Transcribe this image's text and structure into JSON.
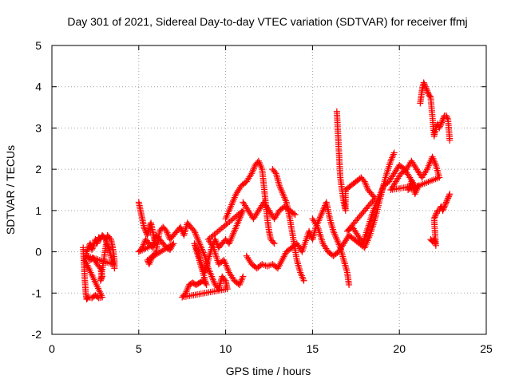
{
  "chart_data": {
    "type": "scatter",
    "title": "Day 301 of 2021, Sidereal Day-to-day VTEC variation (SDTVAR) for receiver ffmj",
    "xlabel": "GPS time / hours",
    "ylabel": "SDTVAR / TECUs",
    "xlim": [
      0,
      25
    ],
    "ylim": [
      -2,
      5
    ],
    "xticks": [
      "0",
      "5",
      "10",
      "15",
      "20",
      "25"
    ],
    "yticks": [
      "-2",
      "-1",
      "0",
      "1",
      "2",
      "3",
      "4",
      "5"
    ],
    "grid": true,
    "marker": "+",
    "color": "#ff0000",
    "series": [
      {
        "name": "SDTVAR",
        "points": [
          [
            1.8,
            0.1
          ],
          [
            1.85,
            -0.3
          ],
          [
            1.9,
            -0.7
          ],
          [
            1.95,
            -1.0
          ],
          [
            2.0,
            -1.15
          ],
          [
            2.1,
            -1.1
          ],
          [
            2.3,
            -1.12
          ],
          [
            2.5,
            -1.05
          ],
          [
            2.7,
            -1.12
          ],
          [
            2.9,
            -1.1
          ],
          [
            1.9,
            -0.2
          ],
          [
            2.0,
            0.0
          ],
          [
            2.1,
            0.1
          ],
          [
            2.2,
            0.2
          ],
          [
            2.3,
            0.05
          ],
          [
            2.4,
            0.15
          ],
          [
            2.5,
            0.3
          ],
          [
            2.6,
            0.2
          ],
          [
            2.7,
            0.35
          ],
          [
            2.8,
            0.3
          ],
          [
            2.9,
            0.4
          ],
          [
            3.0,
            0.35
          ],
          [
            3.1,
            0.3
          ],
          [
            3.2,
            0.15
          ],
          [
            3.3,
            0.05
          ],
          [
            3.4,
            -0.1
          ],
          [
            3.5,
            -0.3
          ],
          [
            2.0,
            -0.1
          ],
          [
            2.2,
            -0.2
          ],
          [
            2.4,
            -0.15
          ],
          [
            2.6,
            -0.3
          ],
          [
            2.8,
            -0.4
          ],
          [
            2.9,
            -0.6
          ],
          [
            2.8,
            -0.7
          ],
          [
            3.2,
            0.4
          ],
          [
            3.4,
            0.3
          ],
          [
            3.5,
            0.1
          ],
          [
            3.6,
            -0.2
          ],
          [
            3.6,
            -0.4
          ],
          [
            5.0,
            1.2
          ],
          [
            5.1,
            1.0
          ],
          [
            5.2,
            0.8
          ],
          [
            5.3,
            0.6
          ],
          [
            5.4,
            0.5
          ],
          [
            5.5,
            0.4
          ],
          [
            5.6,
            0.6
          ],
          [
            5.7,
            0.7
          ],
          [
            5.8,
            0.5
          ],
          [
            5.9,
            0.3
          ],
          [
            6.0,
            0.2
          ],
          [
            5.0,
            0.0
          ],
          [
            5.2,
            0.1
          ],
          [
            5.4,
            0.3
          ],
          [
            5.6,
            0.2
          ],
          [
            5.8,
            0.1
          ],
          [
            6.0,
            0.4
          ],
          [
            6.2,
            0.3
          ],
          [
            6.4,
            0.2
          ],
          [
            6.6,
            0.1
          ],
          [
            6.8,
            0.05
          ],
          [
            7.0,
            0.2
          ],
          [
            5.5,
            -0.2
          ],
          [
            5.6,
            -0.3
          ],
          [
            5.8,
            -0.1
          ],
          [
            6.0,
            0.0
          ],
          [
            6.2,
            0.5
          ],
          [
            6.4,
            0.6
          ],
          [
            6.6,
            0.5
          ],
          [
            6.8,
            0.3
          ],
          [
            7.0,
            0.4
          ],
          [
            7.2,
            0.5
          ],
          [
            7.4,
            0.6
          ],
          [
            7.6,
            0.4
          ],
          [
            7.8,
            0.7
          ],
          [
            8.0,
            0.6
          ],
          [
            8.2,
            0.5
          ],
          [
            8.4,
            0.3
          ],
          [
            8.6,
            0.1
          ],
          [
            8.8,
            -0.1
          ],
          [
            9.0,
            -0.4
          ],
          [
            9.2,
            -0.6
          ],
          [
            9.4,
            -0.8
          ],
          [
            9.6,
            -0.9
          ],
          [
            9.8,
            -0.6
          ],
          [
            10.0,
            -0.7
          ],
          [
            10.1,
            -0.9
          ],
          [
            7.5,
            -1.1
          ],
          [
            7.7,
            -1.0
          ],
          [
            7.9,
            -0.8
          ],
          [
            8.1,
            -0.75
          ],
          [
            8.3,
            -0.8
          ],
          [
            8.5,
            -0.75
          ],
          [
            8.7,
            -0.7
          ],
          [
            8.9,
            -0.8
          ],
          [
            8.2,
            0.2
          ],
          [
            8.4,
            0.0
          ],
          [
            8.6,
            -0.3
          ],
          [
            8.8,
            -0.5
          ],
          [
            9.0,
            -0.2
          ],
          [
            9.2,
            0.1
          ],
          [
            9.4,
            0.3
          ],
          [
            9.6,
            0.1
          ],
          [
            9.8,
            0.2
          ],
          [
            10.0,
            0.3
          ],
          [
            10.2,
            0.2
          ],
          [
            10.4,
            0.4
          ],
          [
            10.6,
            0.6
          ],
          [
            10.8,
            0.8
          ],
          [
            11.0,
            1.0
          ],
          [
            9.0,
            0.3
          ],
          [
            9.3,
            0.1
          ],
          [
            9.6,
            -0.3
          ],
          [
            9.9,
            -0.2
          ],
          [
            10.2,
            -0.5
          ],
          [
            10.5,
            -0.7
          ],
          [
            10.8,
            -0.8
          ],
          [
            11.0,
            -0.6
          ],
          [
            10.0,
            0.8
          ],
          [
            10.3,
            1.1
          ],
          [
            10.6,
            1.4
          ],
          [
            10.9,
            1.6
          ],
          [
            11.2,
            1.7
          ],
          [
            11.5,
            1.9
          ],
          [
            11.7,
            2.1
          ],
          [
            11.9,
            2.2
          ],
          [
            12.1,
            2.0
          ],
          [
            12.2,
            1.6
          ],
          [
            12.3,
            1.2
          ],
          [
            12.4,
            0.8
          ],
          [
            12.5,
            0.5
          ],
          [
            12.6,
            0.3
          ],
          [
            12.8,
            0.2
          ],
          [
            11.0,
            1.2
          ],
          [
            11.3,
            1.0
          ],
          [
            11.6,
            0.8
          ],
          [
            11.9,
            1.0
          ],
          [
            12.2,
            1.2
          ],
          [
            12.5,
            1.0
          ],
          [
            12.8,
            0.8
          ],
          [
            13.1,
            1.0
          ],
          [
            13.4,
            1.1
          ],
          [
            13.7,
            1.0
          ],
          [
            14.0,
            0.9
          ],
          [
            12.7,
            2.0
          ],
          [
            12.9,
            1.9
          ],
          [
            13.1,
            1.6
          ],
          [
            13.3,
            1.4
          ],
          [
            13.5,
            1.2
          ],
          [
            13.7,
            0.8
          ],
          [
            13.9,
            0.3
          ],
          [
            14.1,
            -0.2
          ],
          [
            14.3,
            -0.5
          ],
          [
            14.5,
            -0.7
          ],
          [
            11.2,
            -0.1
          ],
          [
            11.5,
            -0.3
          ],
          [
            11.8,
            -0.4
          ],
          [
            12.1,
            -0.3
          ],
          [
            12.4,
            -0.35
          ],
          [
            12.7,
            -0.3
          ],
          [
            13.0,
            -0.4
          ],
          [
            13.5,
            0.0
          ],
          [
            13.8,
            0.1
          ],
          [
            14.1,
            0.2
          ],
          [
            14.4,
            0.0
          ],
          [
            14.8,
            0.5
          ],
          [
            15.0,
            0.3
          ],
          [
            15.2,
            0.6
          ],
          [
            15.4,
            0.8
          ],
          [
            15.6,
            1.0
          ],
          [
            15.8,
            1.2
          ],
          [
            16.0,
            0.8
          ],
          [
            16.2,
            0.5
          ],
          [
            16.4,
            0.3
          ],
          [
            16.6,
            0.1
          ],
          [
            16.8,
            -0.2
          ],
          [
            17.0,
            -0.5
          ],
          [
            17.1,
            -0.8
          ],
          [
            15.0,
            0.8
          ],
          [
            15.3,
            0.6
          ],
          [
            15.6,
            0.2
          ],
          [
            15.9,
            0.0
          ],
          [
            16.2,
            -0.1
          ],
          [
            16.5,
            0.0
          ],
          [
            16.8,
            0.2
          ],
          [
            17.1,
            0.4
          ],
          [
            17.4,
            0.3
          ],
          [
            17.7,
            0.2
          ],
          [
            18.0,
            0.1
          ],
          [
            18.3,
            0.4
          ],
          [
            18.6,
            0.8
          ],
          [
            18.9,
            1.3
          ],
          [
            19.2,
            1.8
          ],
          [
            19.5,
            2.2
          ],
          [
            19.7,
            2.4
          ],
          [
            16.4,
            3.4
          ],
          [
            16.45,
            3.0
          ],
          [
            16.5,
            2.6
          ],
          [
            16.55,
            2.2
          ],
          [
            16.6,
            1.8
          ],
          [
            16.7,
            1.5
          ],
          [
            16.8,
            1.2
          ],
          [
            16.9,
            1.0
          ],
          [
            16.9,
            1.5
          ],
          [
            17.2,
            1.6
          ],
          [
            17.5,
            1.7
          ],
          [
            17.8,
            1.8
          ],
          [
            18.0,
            1.7
          ],
          [
            18.2,
            1.5
          ],
          [
            18.4,
            1.4
          ],
          [
            18.6,
            1.3
          ],
          [
            17.0,
            0.5
          ],
          [
            17.3,
            0.6
          ],
          [
            17.6,
            0.4
          ],
          [
            17.9,
            0.2
          ],
          [
            18.2,
            0.6
          ],
          [
            18.5,
            1.0
          ],
          [
            18.8,
            1.3
          ],
          [
            19.1,
            1.6
          ],
          [
            19.4,
            1.7
          ],
          [
            19.7,
            1.9
          ],
          [
            20.0,
            2.1
          ],
          [
            20.3,
            2.0
          ],
          [
            20.6,
            1.8
          ],
          [
            20.9,
            1.6
          ],
          [
            19.5,
            1.5
          ],
          [
            19.8,
            1.7
          ],
          [
            20.1,
            1.9
          ],
          [
            20.4,
            2.0
          ],
          [
            20.7,
            2.2
          ],
          [
            21.0,
            2.0
          ],
          [
            21.3,
            1.8
          ],
          [
            21.6,
            2.0
          ],
          [
            21.9,
            2.3
          ],
          [
            22.1,
            2.1
          ],
          [
            22.3,
            1.8
          ],
          [
            20.5,
            1.5
          ],
          [
            20.7,
            1.7
          ],
          [
            20.9,
            1.4
          ],
          [
            21.1,
            1.6
          ],
          [
            21.2,
            3.6
          ],
          [
            21.3,
            3.9
          ],
          [
            21.4,
            4.1
          ],
          [
            21.5,
            4.0
          ],
          [
            21.6,
            3.9
          ],
          [
            21.7,
            3.8
          ],
          [
            21.8,
            3.75
          ],
          [
            22.0,
            2.8
          ],
          [
            22.1,
            3.0
          ],
          [
            22.2,
            3.1
          ],
          [
            22.3,
            3.0
          ],
          [
            22.4,
            3.1
          ],
          [
            22.5,
            3.2
          ],
          [
            22.6,
            3.3
          ],
          [
            22.7,
            3.3
          ],
          [
            22.8,
            3.2
          ],
          [
            22.9,
            2.7
          ],
          [
            21.8,
            0.3
          ],
          [
            21.9,
            0.25
          ],
          [
            22.0,
            0.3
          ],
          [
            22.1,
            0.15
          ],
          [
            22.0,
            0.8
          ],
          [
            22.1,
            0.9
          ],
          [
            22.2,
            1.0
          ],
          [
            22.3,
            1.0
          ],
          [
            22.4,
            1.1
          ],
          [
            22.5,
            1.0
          ],
          [
            22.6,
            1.1
          ],
          [
            22.7,
            1.2
          ],
          [
            22.8,
            1.3
          ],
          [
            22.9,
            1.4
          ]
        ]
      }
    ]
  }
}
